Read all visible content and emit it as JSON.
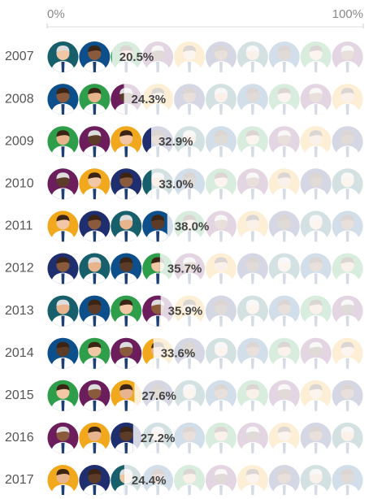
{
  "chart_data": {
    "type": "pictogram",
    "categories": [
      "2007",
      "2008",
      "2009",
      "2010",
      "2011",
      "2012",
      "2013",
      "2014",
      "2015",
      "2016",
      "2017"
    ],
    "values": [
      20.5,
      24.3,
      32.9,
      33.0,
      38.0,
      35.7,
      35.9,
      33.6,
      27.6,
      27.2,
      24.4
    ],
    "value_labels": [
      "20.5%",
      "24.3%",
      "32.9%",
      "33.0%",
      "38.0%",
      "35.7%",
      "35.9%",
      "33.6%",
      "27.6%",
      "27.2%",
      "24.4%"
    ],
    "xlim": [
      0,
      100
    ],
    "xticks": [
      {
        "value": 0,
        "label": "0%"
      },
      {
        "value": 100,
        "label": "100%"
      }
    ],
    "icon_colors": [
      "#17606b",
      "#0d4f8b",
      "#2e9e4a",
      "#6b1d5c",
      "#f2a81d",
      "#1f2e6e"
    ]
  }
}
